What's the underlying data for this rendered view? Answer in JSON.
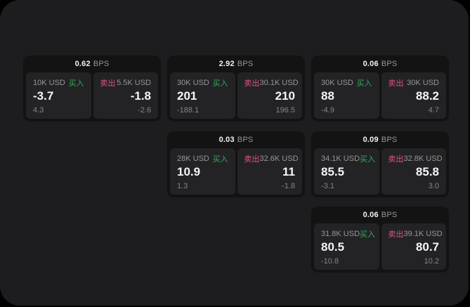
{
  "theme": {
    "page_bg": "#000000",
    "panel_bg": "#1d1d1f",
    "card_bg": "#131314",
    "tile_bg": "#232326",
    "text_primary": "#f5f5f7",
    "text_secondary": "#97979b",
    "text_dim": "#85858a",
    "buy_color": "#2fae53",
    "sell_color": "#e0537d"
  },
  "labels": {
    "bps_unit": "BPS",
    "buy": "买入",
    "sell": "卖出"
  },
  "cards": [
    {
      "bps": "0.62",
      "buy": {
        "amount": "10K USD",
        "value": "-3.7",
        "delta": "4.3"
      },
      "sell": {
        "amount": "5.5K USD",
        "value": "-1.8",
        "delta": "-2.6"
      }
    },
    {
      "bps": "2.92",
      "buy": {
        "amount": "30K USD",
        "value": "201",
        "delta": "-188.1"
      },
      "sell": {
        "amount": "30.1K USD",
        "value": "210",
        "delta": "196.5"
      }
    },
    {
      "bps": "0.06",
      "buy": {
        "amount": "30K USD",
        "value": "88",
        "delta": "-4.9"
      },
      "sell": {
        "amount": "30K USD",
        "value": "88.2",
        "delta": "4.7"
      }
    },
    {
      "bps": "0.03",
      "buy": {
        "amount": "28K USD",
        "value": "10.9",
        "delta": "1.3"
      },
      "sell": {
        "amount": "32.6K USD",
        "value": "11",
        "delta": "-1.8"
      }
    },
    {
      "bps": "0.09",
      "buy": {
        "amount": "34.1K USD",
        "value": "85.5",
        "delta": "-3.1"
      },
      "sell": {
        "amount": "32.8K USD",
        "value": "85.8",
        "delta": "3.0"
      }
    },
    {
      "bps": "0.06",
      "buy": {
        "amount": "31.8K USD",
        "value": "80.5",
        "delta": "-10.8"
      },
      "sell": {
        "amount": "39.1K USD",
        "value": "80.7",
        "delta": "10.2"
      }
    }
  ]
}
